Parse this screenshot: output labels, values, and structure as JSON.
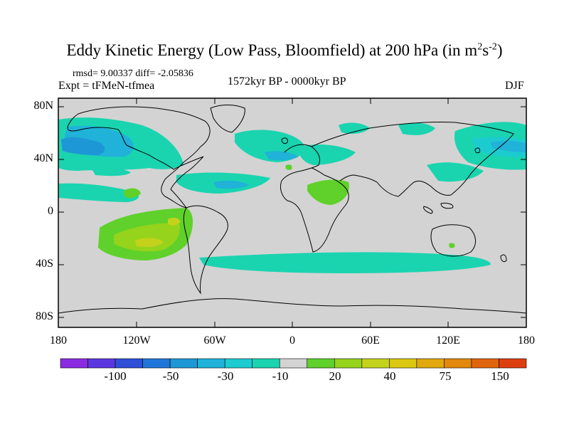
{
  "title": "Eddy Kinetic Energy (Low Pass, Bloomfield) at 200 hPa (in m",
  "title_sup1": "2",
  "title_mid": "s",
  "title_sup2": "-2",
  "title_end": ")",
  "stats": "rmsd= 9.00337 diff= -2.05836",
  "experiment": "Expt = tFMeN-tfmea",
  "period": "1572kyr BP - 0000kyr BP",
  "season": "DJF",
  "y_ticks": [
    "80N",
    "40N",
    "0",
    "40S",
    "80S"
  ],
  "x_ticks": [
    "180",
    "120W",
    "60W",
    "0",
    "60E",
    "120E",
    "180"
  ],
  "colorbar": {
    "colors": [
      "#8a2be2",
      "#5b36e0",
      "#2f4fd8",
      "#1f76d8",
      "#1e97d6",
      "#20b2d8",
      "#1ccbcf",
      "#1ad4b0",
      "#d3d3d3",
      "#5fd12a",
      "#96d31c",
      "#c4d21c",
      "#dcc812",
      "#e0a90e",
      "#e2880c",
      "#e0640d",
      "#dd3e10"
    ],
    "labels": [
      "-100",
      "-50",
      "-30",
      "-10",
      "20",
      "40",
      "75",
      "150"
    ]
  },
  "legend_colors": {
    "land_ocean_background": "#d3d3d3",
    "teal": "#1ad4b0",
    "light_blue": "#1ccbcf",
    "blue": "#20b2d8",
    "green": "#5fd12a",
    "yellow_green": "#96d31c",
    "olive": "#c4d21c"
  }
}
